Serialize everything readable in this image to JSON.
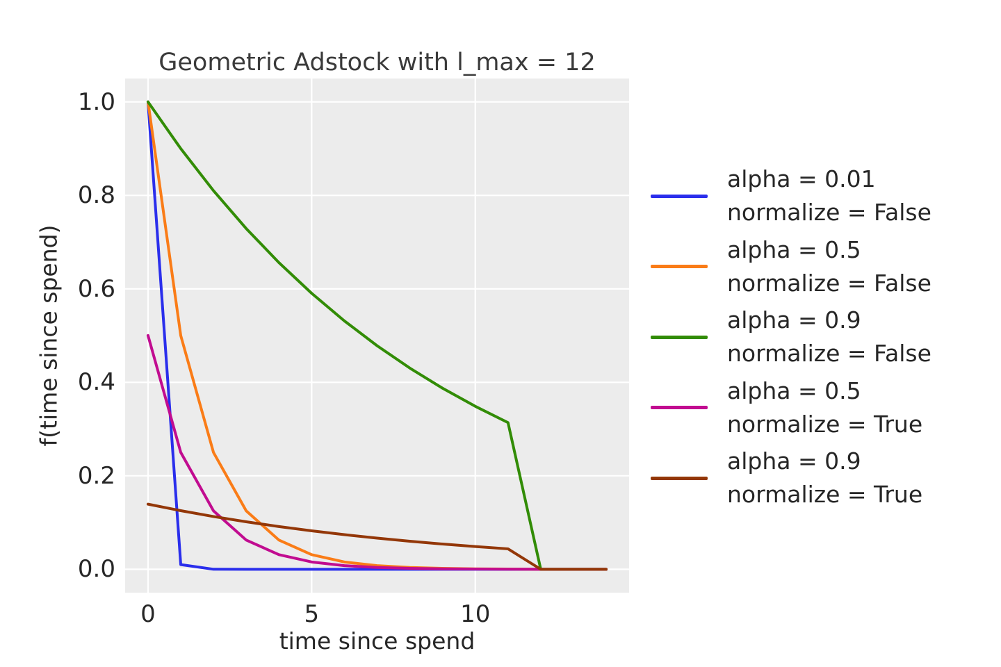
{
  "figure": {
    "background": "#ffffff",
    "axes_background": "#ececec",
    "grid_color": "#ffffff",
    "text_color": "#262626"
  },
  "chart_data": {
    "type": "line",
    "title": "Geometric Adstock with l_max = 12",
    "xlabel": "time since spend",
    "ylabel": "f(time since spend)",
    "xlim": [
      -0.7,
      14.7
    ],
    "ylim": [
      -0.05,
      1.05
    ],
    "grid": true,
    "legend_position": "right-outside",
    "x_gridlines": [
      0,
      5,
      10
    ],
    "y_gridlines": [
      0,
      0.2,
      0.4,
      0.6,
      0.8,
      1.0
    ],
    "x_ticks": {
      "values": [
        0,
        5,
        10
      ],
      "labels": [
        "0",
        "5",
        "10"
      ]
    },
    "y_ticks": {
      "values": [
        0,
        0.2,
        0.4,
        0.6,
        0.8,
        1.0
      ],
      "labels": [
        "0.0",
        "0.2",
        "0.4",
        "0.6",
        "0.8",
        "1.0"
      ]
    },
    "x": [
      0,
      1,
      2,
      3,
      4,
      5,
      6,
      7,
      8,
      9,
      10,
      11,
      12,
      13,
      14
    ],
    "series": [
      {
        "name": "alpha = 0.01, normalize = False",
        "label_line1": "alpha = 0.01",
        "label_line2": "normalize = False",
        "color": "#2a2eec",
        "values": [
          1.0,
          0.01,
          0.0001,
          0,
          0,
          0,
          0,
          0,
          0,
          0,
          0,
          0,
          0,
          0,
          0
        ]
      },
      {
        "name": "alpha = 0.5, normalize = False",
        "label_line1": "alpha = 0.5",
        "label_line2": "normalize = False",
        "color": "#fa7c17",
        "values": [
          1.0,
          0.5,
          0.25,
          0.125,
          0.0625,
          0.03125,
          0.015625,
          0.007813,
          0.003906,
          0.001953,
          0.000977,
          0.000488,
          0,
          0,
          0
        ]
      },
      {
        "name": "alpha = 0.9, normalize = False",
        "label_line1": "alpha = 0.9",
        "label_line2": "normalize = False",
        "color": "#328c06",
        "values": [
          1.0,
          0.9,
          0.81,
          0.729,
          0.6561,
          0.59049,
          0.531441,
          0.478297,
          0.430467,
          0.38742,
          0.348678,
          0.313811,
          0,
          0,
          0
        ]
      },
      {
        "name": "alpha = 0.5, normalize = True",
        "label_line1": "alpha = 0.5",
        "label_line2": "normalize = True",
        "color": "#c10c90",
        "values": [
          0.500122,
          0.250061,
          0.125031,
          0.062515,
          0.031258,
          0.015629,
          0.007814,
          0.003907,
          0.001954,
          0.000977,
          0.000488,
          0.000244,
          0,
          0,
          0
        ]
      },
      {
        "name": "alpha = 0.9, normalize = True",
        "label_line1": "alpha = 0.9",
        "label_line2": "normalize = True",
        "color": "#933708",
        "values": [
          0.139359,
          0.125423,
          0.112881,
          0.101593,
          0.091433,
          0.08229,
          0.074061,
          0.066655,
          0.05999,
          0.053991,
          0.048592,
          0.043732,
          0,
          0,
          0
        ]
      }
    ]
  }
}
